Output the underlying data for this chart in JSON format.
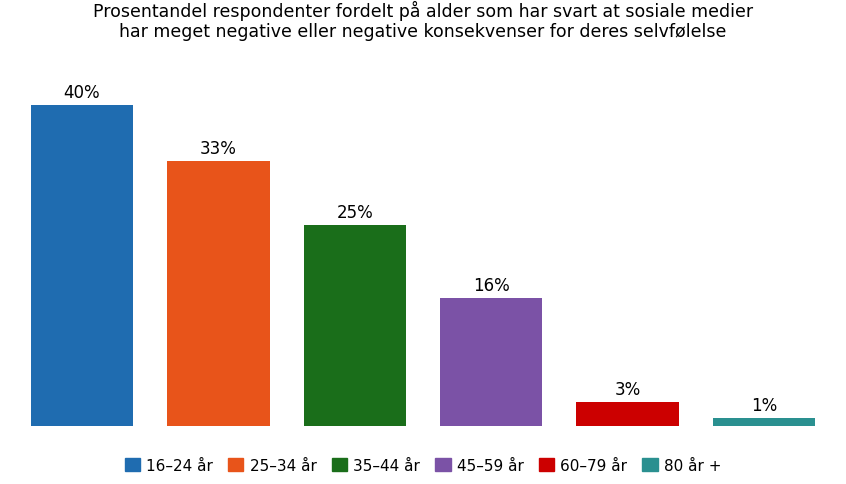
{
  "title": "Prosentandel respondenter fordelt på alder som har svart at sosiale medier\nhar meget negative eller negative konsekvenser for deres selvfølelse",
  "categories": [
    "16–24 år",
    "25–34 år",
    "35–44 år",
    "45–59 år",
    "60–79 år",
    "80 år +"
  ],
  "values": [
    40,
    33,
    25,
    16,
    3,
    1
  ],
  "bar_colors": [
    "#1f6cb0",
    "#e8541a",
    "#1a6e1a",
    "#7b52a6",
    "#cc0000",
    "#2a9090"
  ],
  "labels": [
    "40%",
    "33%",
    "25%",
    "16%",
    "3%",
    "1%"
  ],
  "ylim": [
    0,
    46
  ],
  "background_color": "#ffffff",
  "title_fontsize": 12.5,
  "label_fontsize": 12,
  "legend_fontsize": 11,
  "bar_width": 0.75
}
